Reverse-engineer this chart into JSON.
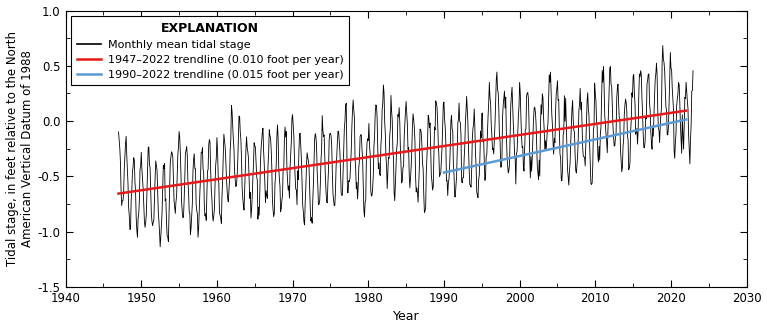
{
  "title": "",
  "xlabel": "Year",
  "ylabel": "Tidal stage, in feet relative to the North\nAmerican Vertical Datum of 1988",
  "xlim": [
    1940,
    2030
  ],
  "ylim": [
    -1.5,
    1.0
  ],
  "xticks": [
    1940,
    1950,
    1960,
    1970,
    1980,
    1990,
    2000,
    2010,
    2020,
    2030
  ],
  "yticks": [
    -1.5,
    -1.0,
    -0.5,
    0.0,
    0.5,
    1.0
  ],
  "trend1_start_year": 1947,
  "trend1_end_year": 2022,
  "trend1_slope": 0.01,
  "trend1_intercept_year": 1947,
  "trend1_intercept_value": -0.655,
  "trend1_color": "#e8191a",
  "trend2_start_year": 1990,
  "trend2_end_year": 2022,
  "trend2_slope": 0.015,
  "trend2_intercept_year": 1990,
  "trend2_intercept_value": -0.465,
  "trend2_color": "#5b9bd5",
  "data_color": "#000000",
  "legend_title": "EXPLANATION",
  "legend_entries": [
    "Monthly mean tidal stage",
    "1947–2022 trendline (0.010 foot per year)",
    "1990–2022 trendline (0.015 foot per year)"
  ],
  "data_start_year": 1947,
  "data_end_year": 2022,
  "random_seed": 42,
  "background_color": "#ffffff",
  "figsize": [
    7.67,
    3.29
  ],
  "dpi": 100
}
